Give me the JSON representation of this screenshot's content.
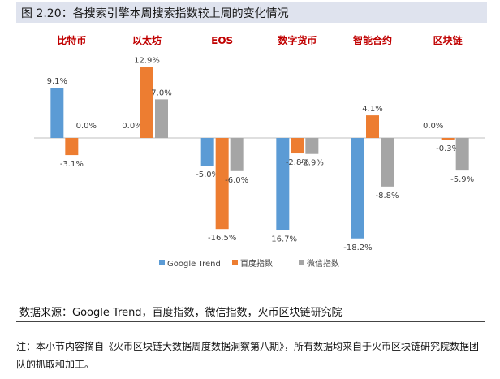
{
  "figure_title": "图 2.20：各搜索引擎本周搜索指数较上周的变化情况",
  "chart_data": {
    "type": "bar",
    "categories": [
      "比特币",
      "以太坊",
      "EOS",
      "数字货币",
      "智能合约",
      "区块链"
    ],
    "series": [
      {
        "name": "Google Trend",
        "color": "#5b9bd5",
        "values": [
          9.1,
          0.0,
          -5.0,
          -16.7,
          -18.2,
          0.0
        ]
      },
      {
        "name": "百度指数",
        "color": "#ed7d31",
        "values": [
          -3.1,
          12.9,
          -16.5,
          -2.8,
          4.1,
          -0.3
        ]
      },
      {
        "name": "微信指数",
        "color": "#a5a5a5",
        "values": [
          0.0,
          7.0,
          -6.0,
          -2.9,
          -8.8,
          -5.9
        ]
      }
    ],
    "data_labels": [
      [
        "9.1%",
        "-3.1%",
        "0.0%"
      ],
      [
        "0.0%",
        "12.9%",
        "7.0%"
      ],
      [
        "-5.0%",
        "-16.5%",
        "-6.0%"
      ],
      [
        "-16.7%",
        "-2.8%",
        "-2.9%"
      ],
      [
        "-18.2%",
        "4.1%",
        "-8.8%"
      ],
      [
        "0.0%",
        "-0.3%",
        "-5.9%"
      ]
    ],
    "category_label_color": "#c00000",
    "legend_position": "bottom"
  },
  "source_text": "数据来源：Google Trend，百度指数，微信指数，火币区块链研究院",
  "note_text": "注：本小节内容摘自《火币区块链大数据周度数据洞察第八期》，所有数据均来自于火币区块链研究院数据团队的抓取和加工。"
}
